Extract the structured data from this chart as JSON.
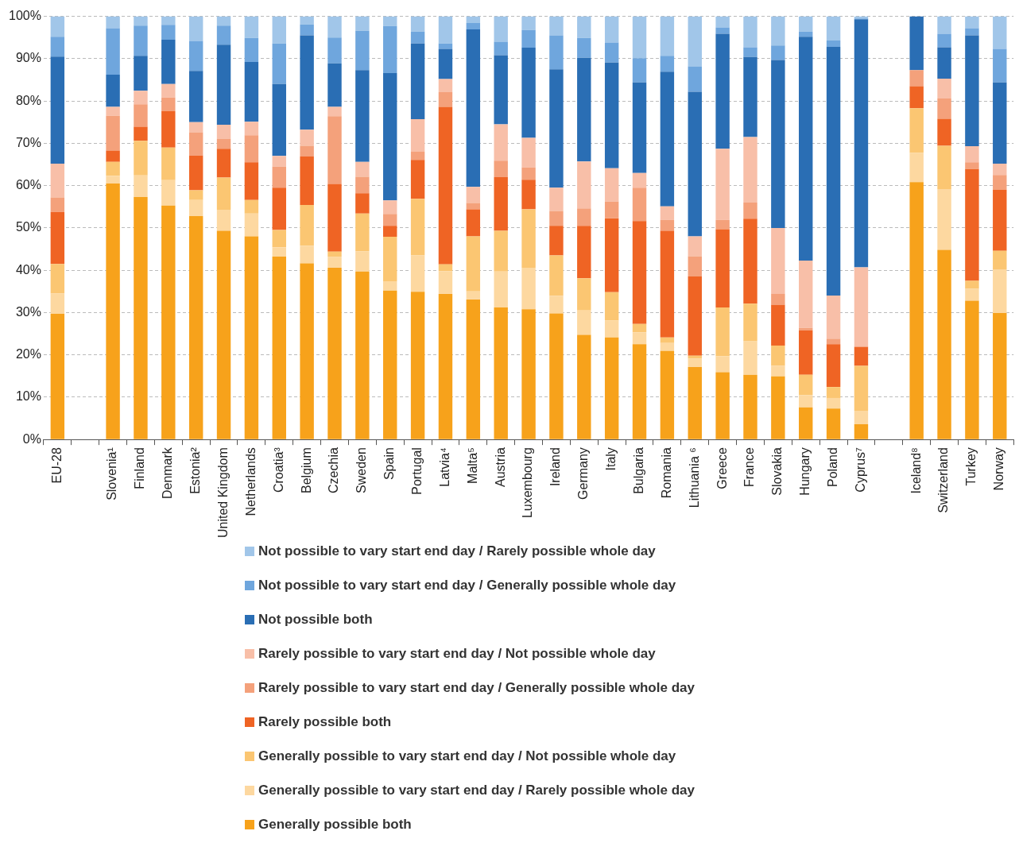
{
  "chart_data": {
    "type": "bar",
    "stacked": true,
    "grid": "y",
    "legend": "bottom",
    "categories": [
      "EU-28",
      null,
      "Slovenia¹",
      "Finland",
      "Denmark",
      "Estonia²",
      "United Kingdom",
      "Netherlands",
      "Croatia³",
      "Belgium",
      "Czechia",
      "Sweden",
      "Spain",
      "Portugal",
      "Latvia⁴",
      "Malta⁵",
      "Austria",
      "Luxembourg",
      "Ireland",
      "Germany",
      "Italy",
      "Bulgaria",
      "Romania",
      "Lithuania ⁶",
      "Greece",
      "France",
      "Slovakia",
      "Hungary",
      "Poland",
      "Cyprus⁷",
      null,
      "Iceland⁸",
      "Switzerland",
      "Turkey",
      "Norway"
    ],
    "ylim": [
      0,
      100
    ],
    "yticks": [
      {
        "value": 0,
        "label": "0%"
      },
      {
        "value": 10,
        "label": "10%"
      },
      {
        "value": 20,
        "label": "20%"
      },
      {
        "value": 30,
        "label": "30%"
      },
      {
        "value": 40,
        "label": "40%"
      },
      {
        "value": 50,
        "label": "50%"
      },
      {
        "value": 60,
        "label": "60%"
      },
      {
        "value": 70,
        "label": "70%"
      },
      {
        "value": 80,
        "label": "80%"
      },
      {
        "value": 90,
        "label": "90%"
      },
      {
        "value": 100,
        "label": "100%"
      }
    ],
    "series": [
      {
        "name": "Generally possible both",
        "color": "#f7a21b",
        "values": [
          29.7,
          null,
          60.5,
          57.3,
          55.3,
          52.8,
          49.3,
          48.0,
          43.2,
          41.6,
          40.6,
          39.7,
          35.2,
          34.9,
          34.4,
          33.1,
          31.2,
          30.8,
          29.8,
          24.7,
          24.1,
          22.5,
          20.9,
          17.1,
          15.9,
          15.3,
          14.9,
          7.6,
          7.3,
          3.6,
          null,
          60.8,
          44.8,
          32.8,
          29.9
        ]
      },
      {
        "name": "Generally possible to vary start end day / Rarely possible whole day",
        "color": "#fdd8a0",
        "values": [
          4.8,
          null,
          1.8,
          5.1,
          6.0,
          3.8,
          5.0,
          5.4,
          2.2,
          4.2,
          2.6,
          4.8,
          2.2,
          8.6,
          5.4,
          1.9,
          8.5,
          9.8,
          4.1,
          5.8,
          4.0,
          2.8,
          1.9,
          2.0,
          3.8,
          7.9,
          2.5,
          2.9,
          2.5,
          3.2,
          null,
          6.9,
          14.4,
          2.8,
          10.3
        ]
      },
      {
        "name": "Generally possible to vary start end day / Not possible whole day",
        "color": "#fbc672",
        "values": [
          7.0,
          null,
          3.3,
          8.2,
          7.7,
          2.3,
          7.6,
          3.2,
          4.1,
          9.6,
          1.2,
          8.9,
          10.5,
          13.4,
          1.6,
          13.0,
          9.6,
          13.8,
          9.6,
          7.6,
          6.7,
          2.0,
          1.3,
          0.7,
          11.5,
          8.9,
          4.8,
          4.8,
          2.6,
          10.6,
          null,
          10.6,
          10.2,
          1.9,
          4.4
        ]
      },
      {
        "name": "Rarely possible both",
        "color": "#ef6424",
        "values": [
          12.3,
          null,
          2.7,
          3.3,
          8.6,
          8.2,
          6.8,
          8.9,
          10.0,
          11.5,
          16.0,
          4.8,
          2.6,
          9.2,
          37.2,
          6.4,
          12.7,
          7.0,
          7.0,
          12.4,
          17.5,
          24.3,
          25.2,
          18.7,
          18.5,
          20.1,
          9.6,
          10.5,
          10.1,
          4.5,
          null,
          5.2,
          6.4,
          26.4,
          14.4
        ]
      },
      {
        "name": "Rarely possible to vary start end day / Generally possible whole day",
        "color": "#f4a17b",
        "values": [
          3.4,
          null,
          8.2,
          5.3,
          3.2,
          5.5,
          2.3,
          6.4,
          5.0,
          2.5,
          16.0,
          3.9,
          2.8,
          1.9,
          3.5,
          1.5,
          3.9,
          2.9,
          3.5,
          4.1,
          3.9,
          7.9,
          2.6,
          4.8,
          2.2,
          3.8,
          2.6,
          0.6,
          1.3,
          0,
          null,
          3.8,
          4.8,
          1.6,
          3.5
        ]
      },
      {
        "name": "Rarely possible to vary start end day / Not possible whole day",
        "color": "#f8bfa8",
        "values": [
          8.0,
          null,
          2.1,
          3.2,
          3.2,
          2.4,
          3.4,
          3.2,
          2.5,
          3.8,
          2.2,
          3.5,
          3.2,
          7.7,
          3.1,
          3.8,
          8.6,
          7.0,
          5.5,
          11.1,
          7.9,
          3.5,
          3.2,
          4.7,
          16.8,
          15.5,
          15.6,
          15.9,
          10.2,
          18.8,
          null,
          0,
          4.7,
          3.8,
          2.7
        ]
      },
      {
        "name": "Not possible both",
        "color": "#2a6eb4",
        "values": [
          25.3,
          null,
          7.6,
          8.3,
          10.5,
          12.1,
          18.9,
          14.1,
          17.0,
          22.3,
          10.3,
          21.7,
          30.1,
          17.9,
          7.1,
          37.2,
          16.3,
          21.3,
          28.0,
          24.5,
          25.0,
          21.4,
          31.8,
          34.2,
          27.2,
          18.9,
          39.7,
          52.9,
          58.8,
          58.6,
          null,
          12.7,
          7.4,
          26.2,
          19.2
        ]
      },
      {
        "name": "Not possible to vary start end day / Generally possible whole day",
        "color": "#6fa6dd",
        "values": [
          4.7,
          null,
          11.0,
          7.1,
          3.5,
          7.1,
          4.5,
          5.7,
          9.6,
          2.6,
          6.1,
          9.3,
          11.1,
          2.8,
          1.3,
          1.5,
          3.2,
          4.2,
          8.0,
          4.7,
          4.7,
          5.7,
          3.8,
          6.0,
          1.5,
          2.3,
          3.4,
          1.2,
          1.5,
          0.2,
          null,
          0,
          3.2,
          1.7,
          7.9
        ]
      },
      {
        "name": "Not possible to vary start end day / Rarely possible whole day",
        "color": "#a1c6e9",
        "values": [
          4.8,
          null,
          2.8,
          2.2,
          2.0,
          5.8,
          2.2,
          5.1,
          6.4,
          1.9,
          5.0,
          3.4,
          2.3,
          3.6,
          6.4,
          1.6,
          6.0,
          3.2,
          4.5,
          5.1,
          6.2,
          9.9,
          9.3,
          11.8,
          2.6,
          7.3,
          6.9,
          3.6,
          5.7,
          0.5,
          null,
          0,
          4.1,
          2.8,
          7.7
        ]
      }
    ]
  }
}
